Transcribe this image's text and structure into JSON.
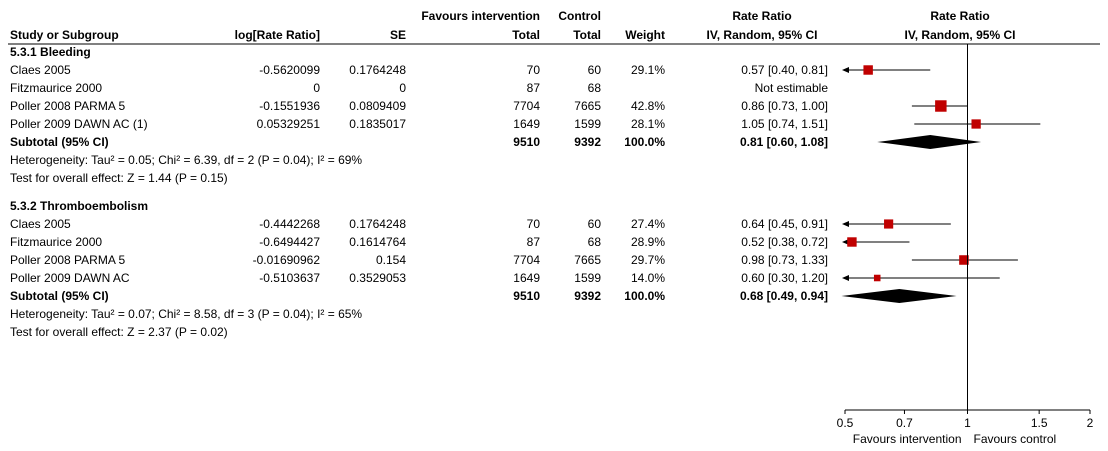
{
  "header": {
    "row1": {
      "exp_group": "Favours intervention",
      "ctrl_group": "Control",
      "rr_col": "Rate Ratio",
      "plot_col": "Rate Ratio"
    },
    "row2": {
      "study": "Study or Subgroup",
      "logrr": "log[Rate Ratio]",
      "se": "SE",
      "exp_total": "Total",
      "ctrl_total": "Total",
      "weight": "Weight",
      "rr_method": "IV, Random, 95% CI",
      "plot_method": "IV, Random, 95% CI"
    }
  },
  "chart_data": {
    "type": "forest",
    "scale": "log",
    "xlim": [
      0.5,
      2
    ],
    "ticks": [
      {
        "value": 0.5,
        "label": "0.5"
      },
      {
        "value": 0.7,
        "label": "0.7"
      },
      {
        "value": 1,
        "label": "1"
      },
      {
        "value": 1.5,
        "label": "1.5"
      },
      {
        "value": 2,
        "label": "2"
      }
    ],
    "favours_left": "Favours intervention",
    "favours_right": "Favours control",
    "subgroups": [
      {
        "name": "5.3.1 Bleeding",
        "studies": [
          {
            "study": "Claes 2005",
            "logrr": "-0.5620099",
            "se": "0.1764248",
            "exp_total": "70",
            "ctrl_total": "60",
            "weight": "29.1%",
            "ci_text": "0.57 [0.40, 0.81]",
            "rr": 0.57,
            "lo": 0.4,
            "hi": 0.81,
            "w": 29.1
          },
          {
            "study": "Fitzmaurice 2000",
            "logrr": "0",
            "se": "0",
            "exp_total": "87",
            "ctrl_total": "68",
            "weight": "",
            "ci_text": "Not estimable",
            "rr": null,
            "lo": null,
            "hi": null,
            "w": 0
          },
          {
            "study": "Poller 2008 PARMA 5",
            "logrr": "-0.1551936",
            "se": "0.0809409",
            "exp_total": "7704",
            "ctrl_total": "7665",
            "weight": "42.8%",
            "ci_text": "0.86 [0.73, 1.00]",
            "rr": 0.86,
            "lo": 0.73,
            "hi": 1.0,
            "w": 42.8
          },
          {
            "study": "Poller 2009 DAWN AC (1)",
            "logrr": "0.05329251",
            "se": "0.1835017",
            "exp_total": "1649",
            "ctrl_total": "1599",
            "weight": "28.1%",
            "ci_text": "1.05 [0.74, 1.51]",
            "rr": 1.05,
            "lo": 0.74,
            "hi": 1.51,
            "w": 28.1
          }
        ],
        "subtotal": {
          "label": "Subtotal (95% CI)",
          "exp_total": "9510",
          "ctrl_total": "9392",
          "weight": "100.0%",
          "ci_text": "0.81 [0.60, 1.08]",
          "rr": 0.81,
          "lo": 0.6,
          "hi": 1.08
        },
        "heterogeneity": "Heterogeneity: Tau² = 0.05; Chi² = 6.39, df = 2 (P = 0.04); I² = 69%",
        "overall": "Test for overall effect: Z = 1.44 (P = 0.15)"
      },
      {
        "name": "5.3.2 Thromboembolism",
        "studies": [
          {
            "study": "Claes 2005",
            "logrr": "-0.4442268",
            "se": "0.1764248",
            "exp_total": "70",
            "ctrl_total": "60",
            "weight": "27.4%",
            "ci_text": "0.64 [0.45, 0.91]",
            "rr": 0.64,
            "lo": 0.45,
            "hi": 0.91,
            "w": 27.4
          },
          {
            "study": "Fitzmaurice 2000",
            "logrr": "-0.6494427",
            "se": "0.1614764",
            "exp_total": "87",
            "ctrl_total": "68",
            "weight": "28.9%",
            "ci_text": "0.52 [0.38, 0.72]",
            "rr": 0.52,
            "lo": 0.38,
            "hi": 0.72,
            "w": 28.9
          },
          {
            "study": "Poller 2008 PARMA 5",
            "logrr": "-0.01690962",
            "se": "0.154",
            "exp_total": "7704",
            "ctrl_total": "7665",
            "weight": "29.7%",
            "ci_text": "0.98 [0.73, 1.33]",
            "rr": 0.98,
            "lo": 0.73,
            "hi": 1.33,
            "w": 29.7
          },
          {
            "study": "Poller 2009 DAWN AC",
            "logrr": "-0.5103637",
            "se": "0.3529053",
            "exp_total": "1649",
            "ctrl_total": "1599",
            "weight": "14.0%",
            "ci_text": "0.60 [0.30, 1.20]",
            "rr": 0.6,
            "lo": 0.3,
            "hi": 1.2,
            "w": 14.0
          }
        ],
        "subtotal": {
          "label": "Subtotal (95% CI)",
          "exp_total": "9510",
          "ctrl_total": "9392",
          "weight": "100.0%",
          "ci_text": "0.68 [0.49, 0.94]",
          "rr": 0.68,
          "lo": 0.49,
          "hi": 0.94
        },
        "heterogeneity": "Heterogeneity: Tau² = 0.07; Chi² = 8.58, df = 3 (P = 0.04); I² = 65%",
        "overall": "Test for overall effect: Z = 2.37 (P = 0.02)"
      }
    ],
    "colors": {
      "marker": "#c00000",
      "line": "#000000",
      "diamond": "#000000"
    }
  }
}
